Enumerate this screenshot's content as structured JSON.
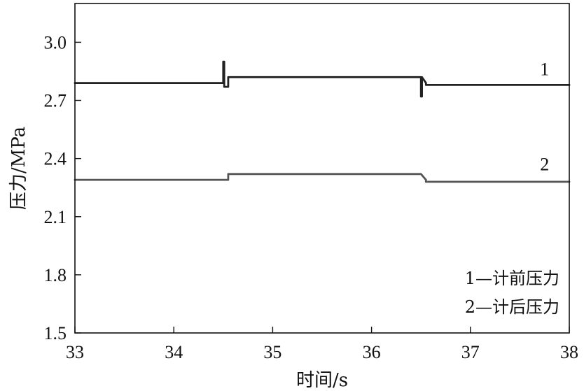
{
  "chart_data": {
    "type": "line",
    "xlabel": "时间/s",
    "ylabel": "压力/MPa",
    "xlim": [
      33,
      38
    ],
    "ylim": [
      1.5,
      3.2
    ],
    "xticks": [
      33,
      34,
      35,
      36,
      37,
      38
    ],
    "yticks": [
      1.5,
      1.8,
      2.1,
      2.4,
      2.7,
      3.0
    ],
    "xtick_labels": [
      "33",
      "34",
      "35",
      "36",
      "37",
      "38"
    ],
    "ytick_labels": [
      "1.5",
      "1.8",
      "2.1",
      "2.4",
      "2.7",
      "3.0"
    ],
    "grid": false,
    "series": [
      {
        "label": "1",
        "color": "#222222",
        "x": [
          33.0,
          34.5,
          34.5,
          34.51,
          34.51,
          34.55,
          34.55,
          36.5,
          36.5,
          36.51,
          36.51,
          36.55,
          36.55,
          38.0
        ],
        "y": [
          2.79,
          2.79,
          2.9,
          2.9,
          2.77,
          2.77,
          2.82,
          2.82,
          2.72,
          2.72,
          2.82,
          2.79,
          2.78,
          2.78
        ]
      },
      {
        "label": "2",
        "color": "#555555",
        "x": [
          33.0,
          34.5,
          34.55,
          34.55,
          36.5,
          36.55,
          36.55,
          38.0
        ],
        "y": [
          2.29,
          2.29,
          2.29,
          2.32,
          2.32,
          2.29,
          2.28,
          2.28
        ]
      }
    ],
    "annotations": [
      {
        "text": "1",
        "x": 37.75,
        "y": 2.83
      },
      {
        "text": "2",
        "x": 37.75,
        "y": 2.34
      }
    ],
    "legend": {
      "position": "bottom-right",
      "entries": [
        "1—计前压力",
        "2—计后压力"
      ]
    }
  }
}
